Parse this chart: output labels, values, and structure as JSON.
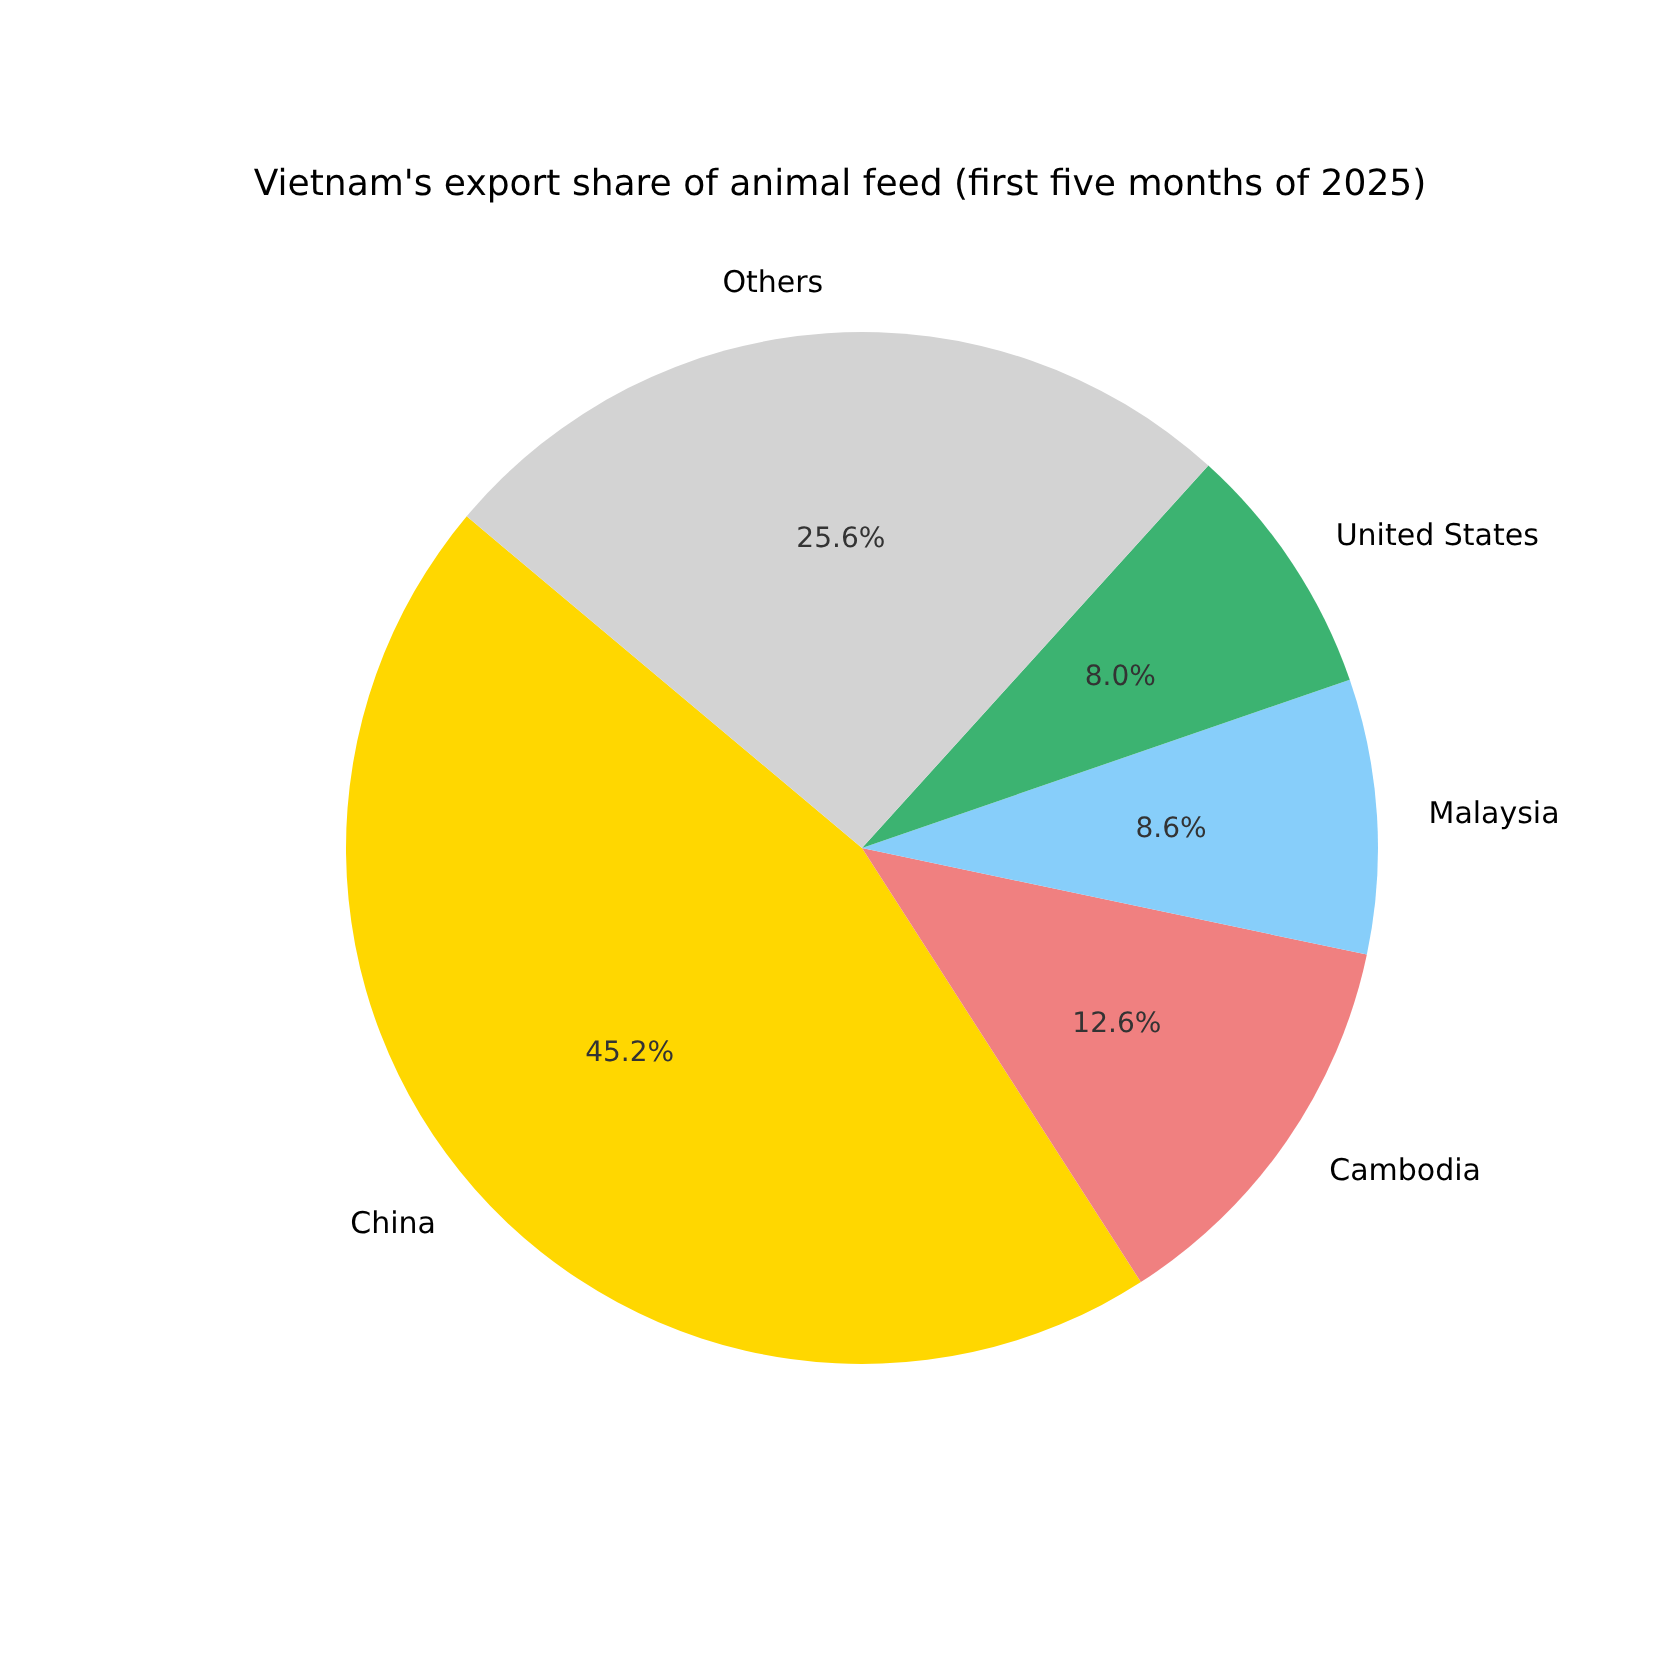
{
  "chart_data": {
    "type": "pie",
    "title": "Vietnam's export share of animal feed (first five months of 2025)",
    "categories": [
      "China",
      "Cambodia",
      "Malaysia",
      "United States",
      "Others"
    ],
    "values": [
      45.2,
      12.6,
      8.6,
      8.0,
      25.6
    ],
    "value_labels": [
      "45.2%",
      "12.6%",
      "8.6%",
      "8.0%",
      "25.6%"
    ],
    "colors": [
      "#ffd700",
      "#f08080",
      "#87cefa",
      "#3cb371",
      "#d3d3d3"
    ],
    "legend": false
  }
}
